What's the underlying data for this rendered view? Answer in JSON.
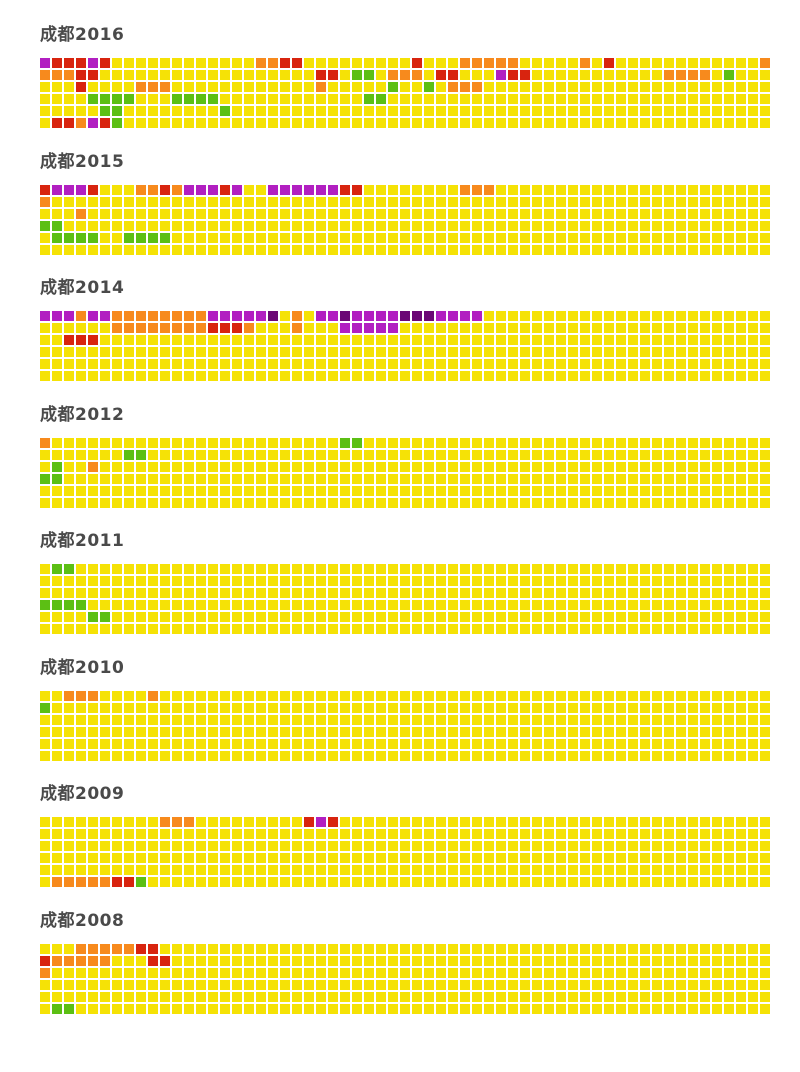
{
  "chart_data": {
    "type": "heatmap",
    "legend": {
      "categories": [
        "green",
        "yellow",
        "orange",
        "red",
        "magenta",
        "purple"
      ],
      "colors": {
        "g": "#5cbf14",
        "y": "#f5e206",
        "o": "#f78a1d",
        "r": "#d8240f",
        "m": "#b21fc1",
        "p": "#6b0775"
      }
    },
    "years": [
      {
        "title": "成都2016",
        "rows": [
          "mrrrmryyyyyyyyyyyyoorryyyyyyyyyryyyoooooyyyyyoyryyyyyyyyyyyyooooooooyyyyyyoooo",
          "ooorryyyyyyyyyyyyyyyyyyrryggyoooyrryyymrryyyyyyyyyyyooooygyyyygyyyyyyyyyyyyyyy",
          "yyyryyyyoooyyyyyyyyyyyyoyyyyygyygyoooyyyyyyyyyyyyyyyyyyyyyyyyyyyyyyyyyyyyyyyyy",
          "yyyyggggyyyggggyyyyyyyyyyyyggyyyyyyyyyyyyyyyyyyyyyyyyyyyyyyyyyyyyyyyyyyyyyyyyy",
          "yyyyyggyyyyyyyygyyyyyyyyyyyyyyyyyyyyyyyyyyyyyyyyyyyyyyyyyyyyyyyyyyyyyyyyyyyyyy",
          "yrromrgyyyyyyyyyyyyyyyyyyyyyyyyyyyyyyyyyyyyyyyyyyyyyyyyyyyyyyyyyyyyyyyyyyyyyyy"
        ]
      },
      {
        "title": "成都2015",
        "rows": [
          "rmmmryyyoorommmrmyymmmmmmrryyyyyyyyoooyyyyyyyyyyyyyyyyyyyyyyyyyyyyyyyyyyyyyyyy",
          "oyyyyyyyyyyyyyyyyyyyyyyyyyyyyyyyyyyyyyyyyyyyyyyyyyyyyyyyyyyyyyyyyyyyyyyyyyyyyy",
          "yyyoyyyyyyyyyyyyyyyyyyyyyyyyyyyyyyyyyyyyyyyyyyyyyyyyyyyyyyyyyyyyyyyyyyyyyyyyyy",
          "ggyyyyyyyyyyyyyyyyyyyyyyyyyyyyyyyyyyyyyyyyyyyyyyyyyyyyyyyyyyyyyyyyyyyyyyyyyyyy",
          "yggggyyggggyyyyyyyyyyyyyyyyyyyyyyyyyyyyyyyyyyyyyyyyyyyyyyyyyyyyyyyyyyyyyyyyyyy",
          "yyyyyyyyyyyyyyyyyyyyyyyyyyyyyyyyyyyyyyyyyyyyyyyyyyyyyyyyyyyyyyyyyyyyyyyyyyyy"
        ]
      },
      {
        "title": "成都2014",
        "rows": [
          "mmmommoooooooommmmmpyoymmpmmmmpppmmmmyyyyyyyyyyyyyyyyyyyyyyyyyyyyyyyyyyyyyyyy",
          "yyyyyyoooooooorrroyyyoyyymmmmmyyyyyyyyyyyyyyyyyyyyyyyyyyyyyyyyyyyyyyyyyyyyyyyy",
          "yyrrryyyyyyyyyyyyyyyyyyyyyyyyyyyyyyyyyyyyyyyyyyyyyyyyyyyyyyyyyyyyyyyyyyyyyyyyy",
          "yyyyyyyyyyyyyyyyyyyyyyyyyyyyyyyyyyyyyyyyyyyyyyyyyyyyyyyyyyyyyyyyyyyyyyyyyyyyyy",
          "yyyyyyyyyyyyyyyyyyyyyyyyyyyyyyyyyyyyyyyyyyyyyyyyyyyyyyyyyyyyyyyyyyyyyyyyyyyyyy",
          "yyyyyyyyyyyyyyyyyyyyyyyyyyyyyyyyyyyyyyyyyyyyyyyyyyyyyyyyyyyyyyyyyyyyyyyyyyyyyy"
        ]
      },
      {
        "title": "成都2012",
        "rows": [
          "oyyyyyyyyyyyyyyyyyyyyyyyyggyyyyyyyyyyyyyyyyyyyyyyyyyyyyyyyyyyyyyyyyyyyyyyyyyyy",
          "yyyyyyyggyyyyyyyyyyyyyyyyyyyyyyyyyyyyyyyyyyyyyyyyyyyyyyyyyyyyyyyyyyyyyyyyyyyyy",
          "ygyyoyyyyyyyyyyyyyyyyyyyyyyyyyyyyyyyyyyyyyyyyyyyyyyyyyyyyyyyyyyyyyyyyyyyyyyyyy",
          "ggyyyyyyyyyyyyyyyyyyyyyyyyyyyyyyyyyyyyyyyyyyyyyyyyyyyyyyyyyyyyyyyyyyyyyyyyyyyy",
          "yyyyyyyyyyyyyyyyyyyyyyyyyyyyyyyyyyyyyyyyyyyyyyyyyyyyyyyyyyyyyyyyyyyyyyyyyyyyyy",
          "yyyyyyyyyyyyyyyyyyyyyyyyyyyyyyyyyyyyyyyyyyyyyyyyyyyyyyyyyyyyyyyyyyyyyyyyyyyy"
        ]
      },
      {
        "title": "成都2011",
        "rows": [
          "yggyyyyyyyyyyyyyyyyyyyyyyyyyyyyyyyyyyyyyyyyyyyyyyyyyyyyyyyyyyyyyyyyyyyyyyyyyyy",
          "yyyyyyyyyyyyyyyyyyyyyyyyyyyyyyyyyyyyyyyyyyyyyyyyyyyyyyyyyyyyyyyyyyyyyyyyyyyyyy",
          "yyyyyyyyyyyyyyyyyyyyyyyyyyyyyyyyyyyyyyyyyyyyyyyyyyyyyyyyyyyyyyyyyyyyyyyyyyyyyy",
          "ggggyyyyyyyyyyyyyyyyyyyyyyyyyyyyyyyyyyyyyyyyyyyyyyyyyyyyyyyyyyyyyyyyyyyyyyyyyy",
          "yyyyggyyyyyyyyyyyyyyyyyyyyyyyyyyyyyyyyyyyyyyyyyyyyyyyyyyyyyyyyyyyyyyyyyyyyyyyy",
          "yyyyyyyyyyyyyyyyyyyyyyyyyyyyyyyyyyyyyyyyyyyyyyyyyyyyyyyyyyyyyyyyyyyyyyyyyyy"
        ]
      },
      {
        "title": "成都2010",
        "rows": [
          "yyoooyyyyoyyyyyyyyyyyyyyyyyyyyyyyyyyyyyyyyyyyyyyyyyyyyyyyyyyyyyyyyyyyyyyyyyyyy",
          "gyyyyyyyyyyyyyyyyyyyyyyyyyyyyyyyyyyyyyyyyyyyyyyyyyyyyyyyyyyyyyyyyyyyyyyyyyyyyy",
          "yyyyyyyyyyyyyyyyyyyyyyyyyyyyyyyyyyyyyyyyyyyyyyyyyyyyyyyyyyyyyyyyyyyyyyyyyyyyyy",
          "yyyyyyyyyyyyyyyyyyyyyyyyyyyyyyyyyyyyyyyyyyyyyyyyyyyyyyyyyyyyyyyyyyyyyyyyyyyyyy",
          "yyyyyyyyyyyyyyyyyyyyyyyyyyyyyyyyyyyyyyyyyyyyyyyyyyyyyyyyyyyyyyyyyyyyyyyyyyyyyy",
          "yyyyyyyyyyyyyyyyyyyyyyyyyyyyyyyyyyyyyyyyyyyyyyyyyyyyyyyyyyyyyyyyyyyyyyyyyy"
        ]
      },
      {
        "title": "成都2009",
        "rows": [
          "yyyyyyyyyyoooyyyyyyyyyrmryyyyyyyyyyyyyyyyyyyyyyyyyyyyyyyyyyyyyyyyyyyyyyyyyyyyy",
          "yyyyyyyyyyyyyyyyyyyyyyyyyyyyyyyyyyyyyyyyyyyyyyyyyyyyyyyyyyyyyyyyyyyyyyyyyyyyyy",
          "yyyyyyyyyyyyyyyyyyyyyyyyyyyyyyyyyyyyyyyyyyyyyyyyyyyyyyyyyyyyyyyyyyyyyyyyyyyyyy",
          "yyyyyyyyyyyyyyyyyyyyyyyyyyyyyyyyyyyyyyyyyyyyyyyyyyyyyyyyyyyyyyyyyyyyyyyyyyyyyy",
          "yyyyyyyyyyyyyyyyyyyyyyyyyyyyyyyyyyyyyyyyyyyyyyyyyyyyyyyyyyyyyyyyyyyyyyyyyyyyyy",
          "yooooorrgyyyyyyyyyyyyyyyyyyyyyyyyyyyyyyyyyyyyyyyyyyyyyyyyyyyyyyyyyyyyyyyyyyy"
        ]
      },
      {
        "title": "成都2008",
        "rows": [
          "yyyooooorryyyyyyyyyyyyyyyyyyyyyyyyyyyyyyyyyyyyyyyyyyyyyyyyyyyyyyyyyyyyyyyyyyyy",
          "roooooyyyrryyyyyyyyyyyyyyyyyyyyyyyyyyyyyyyyyyyyyyyyyyyyyyyyyyyyyyyyyyyyyyyyyyy",
          "oyyyyyyyyyyyyyyyyyyyyyyyyyyyyyyyyyyyyyyyyyyyyyyyyyyyyyyyyyyyyyyyyyyyyyyyyyyyyy",
          "yyyyyyyyyyyyyyyyyyyyyyyyyyyyyyyyyyyyyyyyyyyyyyyyyyyyyyyyyyyyyyyyyyyyyyyyyyyyyy",
          "yyyyyyyyyyyyyyyyyyyyyyyyyyyyyyyyyyyyyyyyyyyyyyyyyyyyyyyyyyyyyyyyyyyyyyyyyyyyyy",
          "yggyyyyyyyyyyyyyyyyyyyyyyyyyyyyyyyyyyyyyyyyyyyyyyyyyyyyyyyyyyyyyyyyyyyyyyyyyy"
        ]
      }
    ]
  }
}
